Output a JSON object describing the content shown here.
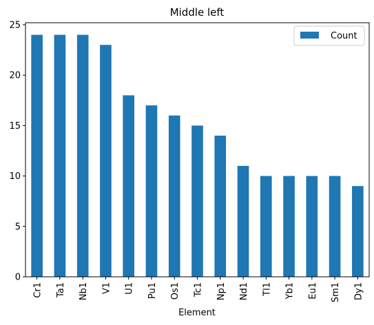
{
  "chart_data": {
    "type": "bar",
    "title": "Middle left",
    "xlabel": "Element",
    "ylabel": "",
    "categories": [
      "Cr1",
      "Ta1",
      "Nb1",
      "V1",
      "U1",
      "Pu1",
      "Os1",
      "Tc1",
      "Np1",
      "Nd1",
      "Tl1",
      "Yb1",
      "Eu1",
      "Sm1",
      "Dy1"
    ],
    "series": [
      {
        "name": "Count",
        "values": [
          24,
          24,
          24,
          23,
          18,
          17,
          16,
          15,
          14,
          11,
          10,
          10,
          10,
          10,
          9
        ],
        "color": "#1f77b4"
      }
    ],
    "ylim": [
      0,
      25.2
    ],
    "yticks": [
      0,
      5,
      10,
      15,
      20,
      25
    ],
    "legend": "top-right",
    "grid": false
  }
}
